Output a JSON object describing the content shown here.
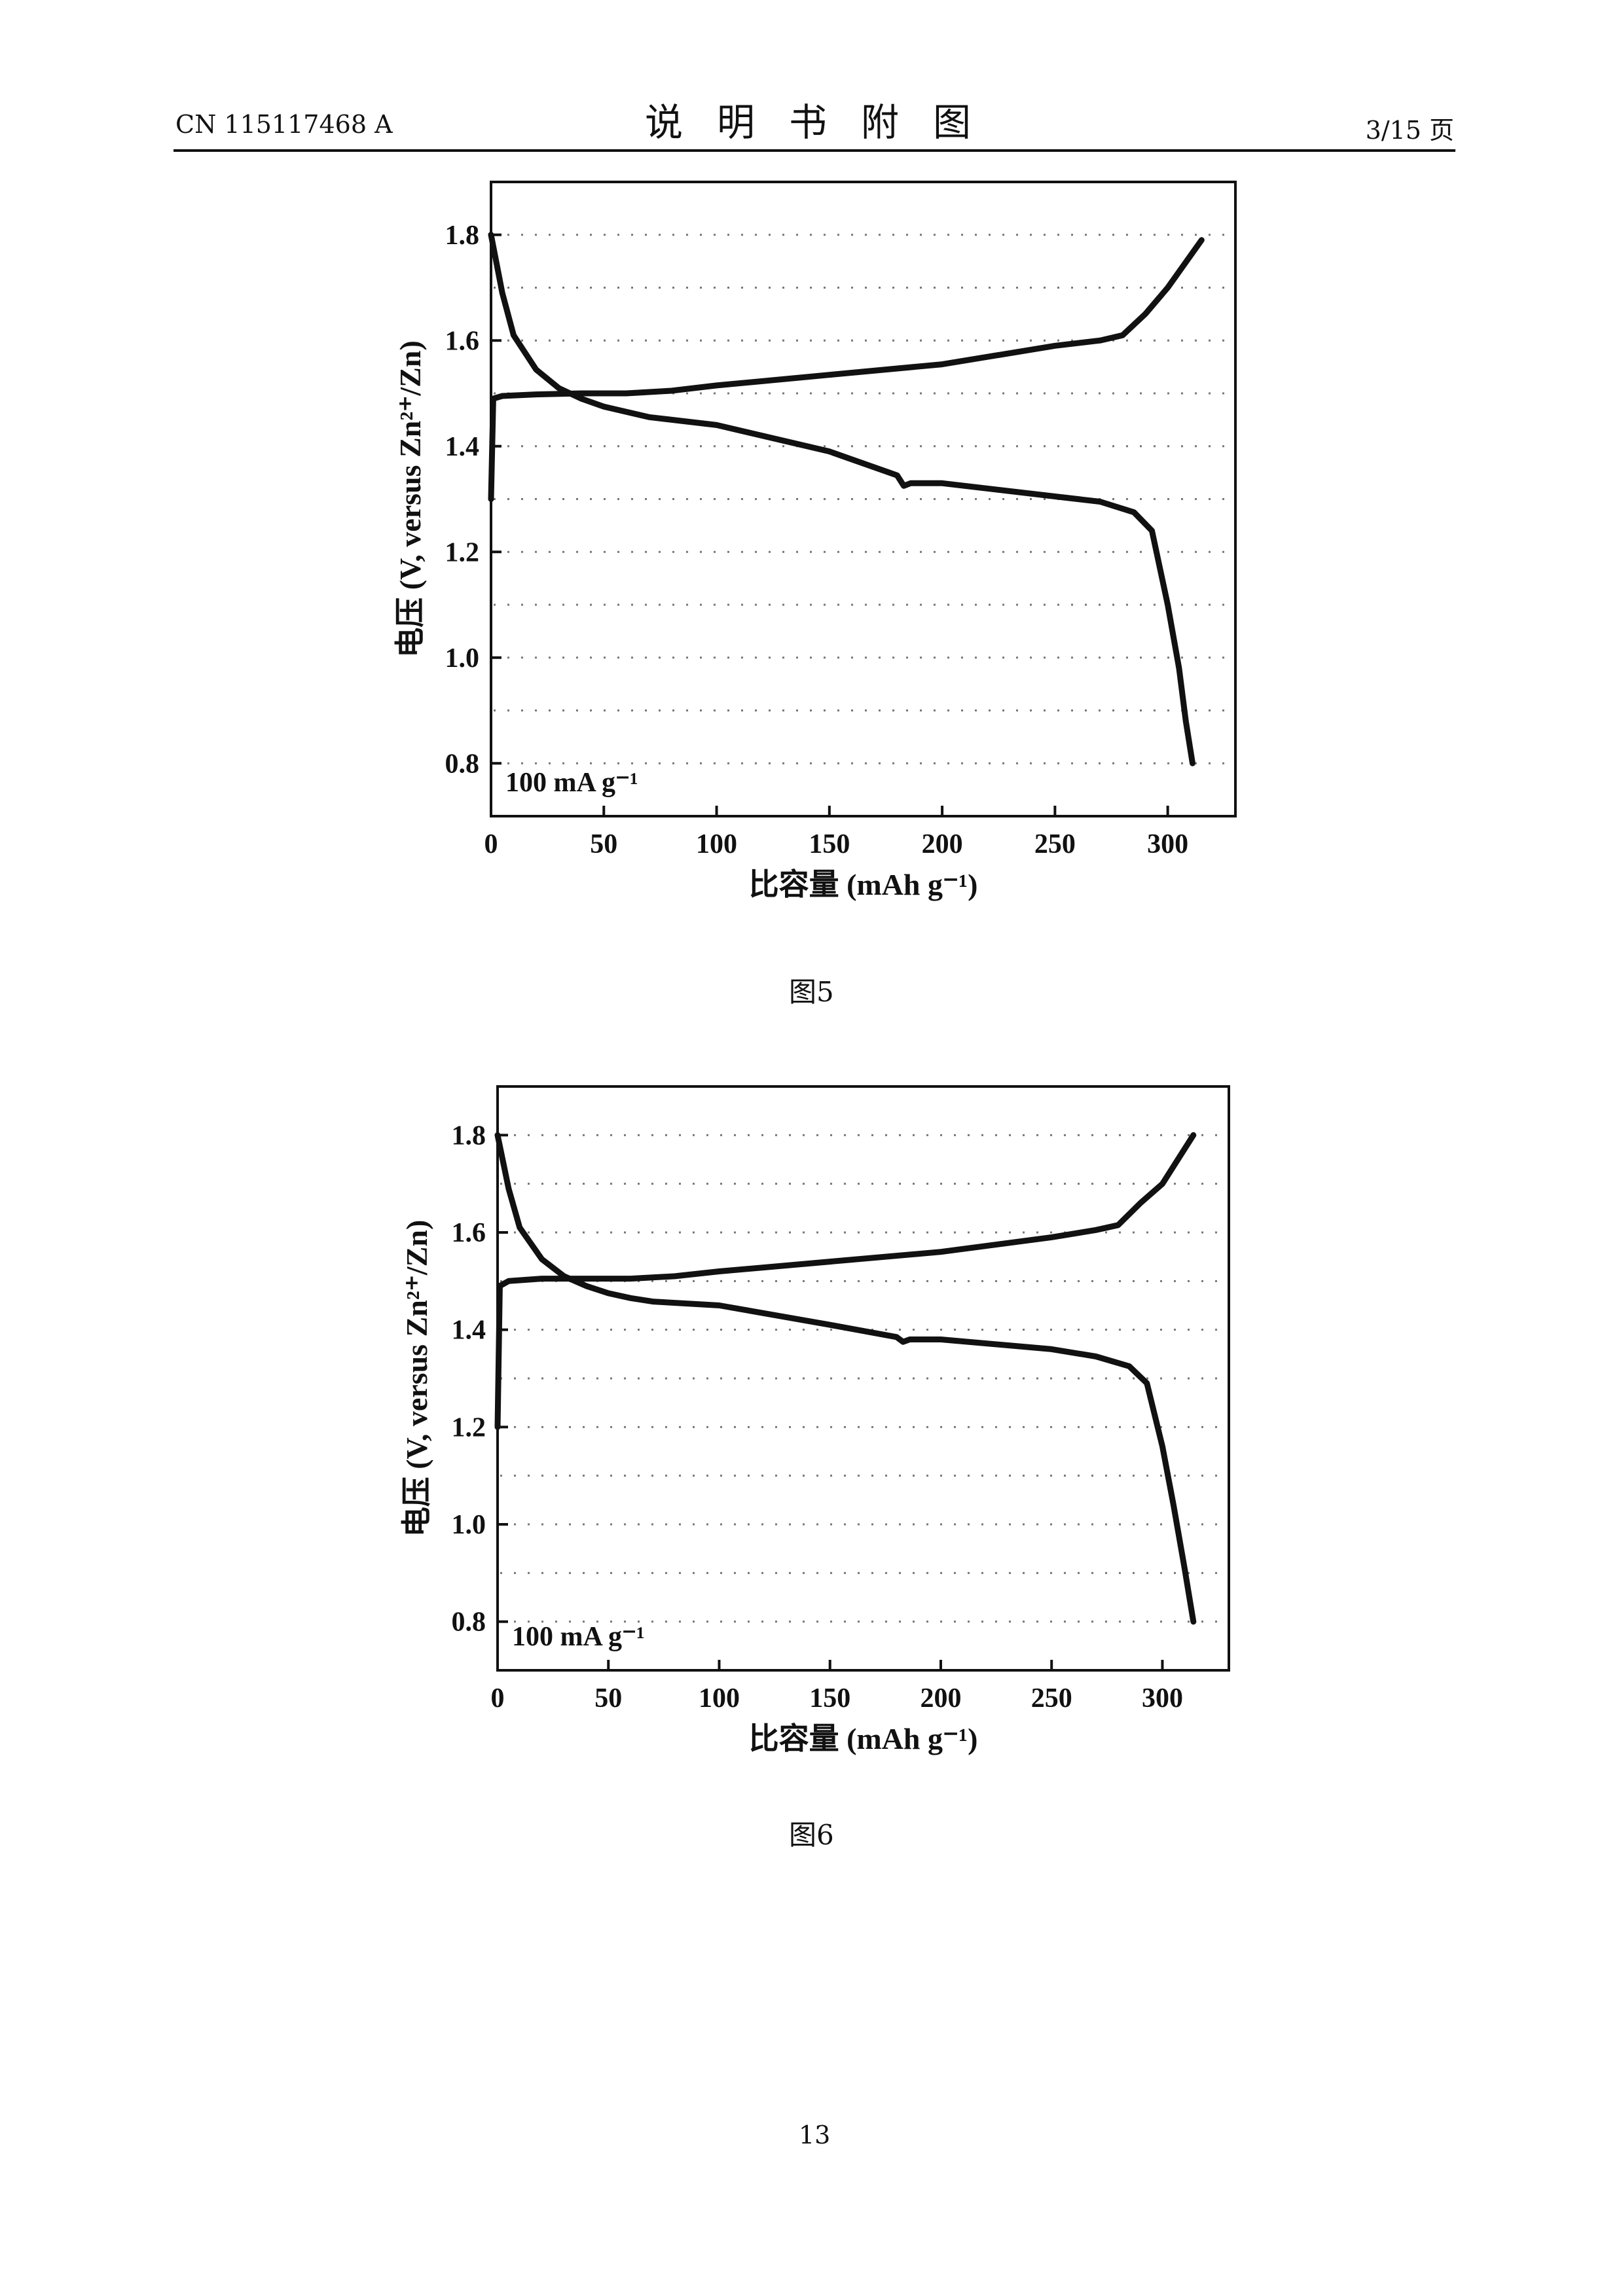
{
  "header": {
    "doc_id": "CN 115117468 A",
    "title": "说明书附图",
    "page_ref": "3/15 页"
  },
  "figures": [
    {
      "caption": "图5"
    },
    {
      "caption": "图6"
    }
  ],
  "page_number": "13",
  "chart_data": [
    {
      "type": "line",
      "title": "",
      "xlabel": "比容量 (mAh g⁻¹)",
      "ylabel": "电压 (V, versus Zn²⁺/Zn)",
      "annotation": "100 mA g⁻¹",
      "xlim": [
        0,
        330
      ],
      "ylim": [
        0.7,
        1.9
      ],
      "xticks": [
        0,
        50,
        100,
        150,
        200,
        250,
        300
      ],
      "yticks": [
        0.8,
        1.0,
        1.2,
        1.4,
        1.6,
        1.8
      ],
      "grid": true,
      "series": [
        {
          "x": [
            0,
            5,
            10,
            20,
            30,
            40,
            50,
            60,
            70,
            100,
            150,
            180,
            183,
            186,
            200,
            250,
            270,
            285,
            293,
            300,
            305,
            308,
            311
          ],
          "y": [
            1.8,
            1.69,
            1.61,
            1.545,
            1.51,
            1.49,
            1.475,
            1.465,
            1.455,
            1.44,
            1.39,
            1.345,
            1.325,
            1.33,
            1.33,
            1.305,
            1.295,
            1.275,
            1.24,
            1.1,
            0.98,
            0.88,
            0.8
          ]
        },
        {
          "x": [
            0,
            1,
            5,
            20,
            40,
            60,
            80,
            100,
            150,
            200,
            250,
            270,
            280,
            290,
            300,
            315
          ],
          "y": [
            1.3,
            1.49,
            1.495,
            1.498,
            1.5,
            1.5,
            1.505,
            1.515,
            1.535,
            1.555,
            1.59,
            1.6,
            1.61,
            1.65,
            1.7,
            1.79
          ]
        }
      ]
    },
    {
      "type": "line",
      "title": "",
      "xlabel": "比容量 (mAh g⁻¹)",
      "ylabel": "电压 (V, versus Zn²⁺/Zn)",
      "annotation": "100 mA g⁻¹",
      "xlim": [
        0,
        330
      ],
      "ylim": [
        0.7,
        1.9
      ],
      "xticks": [
        0,
        50,
        100,
        150,
        200,
        250,
        300
      ],
      "yticks": [
        0.8,
        1.0,
        1.2,
        1.4,
        1.6,
        1.8
      ],
      "grid": true,
      "series": [
        {
          "x": [
            0,
            5,
            10,
            20,
            30,
            40,
            50,
            60,
            70,
            100,
            150,
            180,
            183,
            186,
            200,
            250,
            270,
            285,
            293,
            300,
            305,
            310,
            314
          ],
          "y": [
            1.8,
            1.69,
            1.61,
            1.545,
            1.51,
            1.49,
            1.475,
            1.465,
            1.458,
            1.45,
            1.41,
            1.385,
            1.375,
            1.38,
            1.38,
            1.36,
            1.345,
            1.325,
            1.29,
            1.16,
            1.04,
            0.91,
            0.8
          ]
        },
        {
          "x": [
            0,
            1,
            5,
            20,
            40,
            60,
            80,
            100,
            150,
            200,
            250,
            270,
            280,
            290,
            300,
            314
          ],
          "y": [
            1.2,
            1.49,
            1.5,
            1.505,
            1.505,
            1.505,
            1.51,
            1.52,
            1.54,
            1.56,
            1.59,
            1.605,
            1.615,
            1.66,
            1.7,
            1.8
          ]
        }
      ]
    }
  ]
}
